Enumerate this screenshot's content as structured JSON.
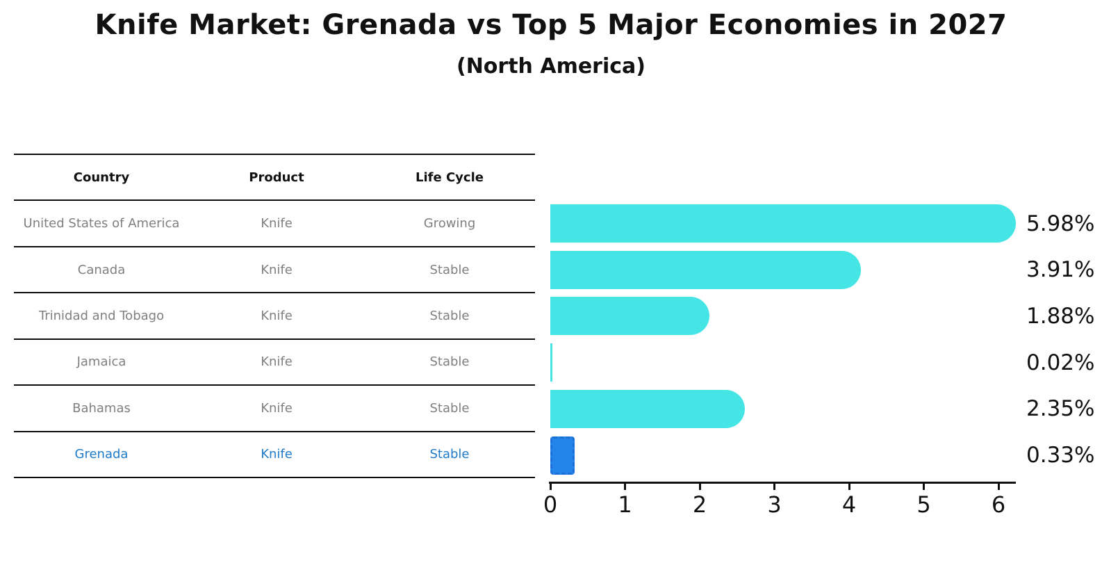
{
  "title": "Knife Market: Grenada vs Top 5 Major Economies in 2027",
  "subtitle": "(North America)",
  "table": {
    "columns": [
      "Country",
      "Product",
      "Life Cycle"
    ],
    "rows": [
      {
        "country": "United States of America",
        "product": "Knife",
        "life_cycle": "Growing",
        "highlight": false
      },
      {
        "country": "Canada",
        "product": "Knife",
        "life_cycle": "Stable",
        "highlight": false
      },
      {
        "country": "Trinidad and Tobago",
        "product": "Knife",
        "life_cycle": "Stable",
        "highlight": false
      },
      {
        "country": "Jamaica",
        "product": "Knife",
        "life_cycle": "Stable",
        "highlight": false
      },
      {
        "country": "Bahamas",
        "product": "Knife",
        "life_cycle": "Stable",
        "highlight": false
      },
      {
        "country": "Grenada",
        "product": "Knife",
        "life_cycle": "Stable",
        "highlight": true
      }
    ]
  },
  "chart_data": {
    "type": "bar",
    "orientation": "horizontal",
    "title": "Knife Market: Grenada vs Top 5 Major Economies in 2027",
    "subtitle": "(North America)",
    "categories": [
      "United States of America",
      "Canada",
      "Trinidad and Tobago",
      "Jamaica",
      "Bahamas",
      "Grenada"
    ],
    "values": [
      5.98,
      3.91,
      1.88,
      0.02,
      2.35,
      0.33
    ],
    "value_labels": [
      "5.98%",
      "3.91%",
      "1.88%",
      "0.02%",
      "2.35%",
      "0.33%"
    ],
    "unit": "%",
    "x_ticks": [
      "0",
      "1",
      "2",
      "3",
      "4",
      "5",
      "6"
    ],
    "xlim": [
      0,
      6.23
    ],
    "grid": false,
    "legend": "none",
    "highlight_index": 5
  },
  "colors": {
    "bar": "#45e5e5",
    "highlight_bar": "#2384ea",
    "highlight_bar_border": "#1c6fd4",
    "highlight_text": "#1f7ac9",
    "table_text": "#7f7f7f",
    "axis": "#111111"
  }
}
